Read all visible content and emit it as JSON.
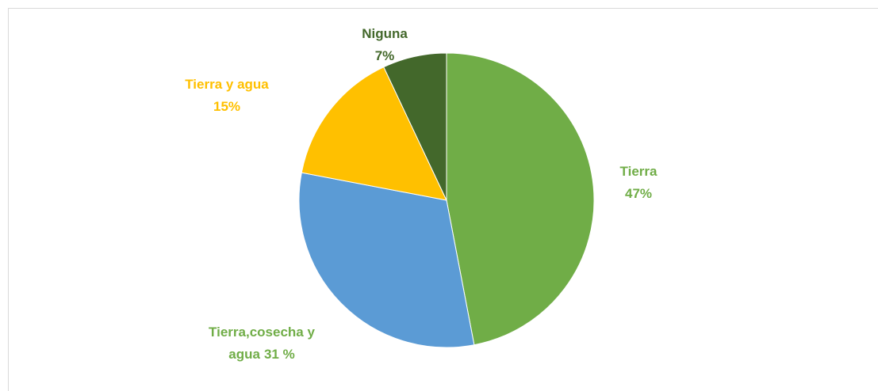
{
  "chart_data": {
    "type": "pie",
    "categories": [
      "Tierra",
      "Tierra,cosecha y agua",
      "Tierra y agua",
      "Niguna"
    ],
    "values": [
      47,
      31,
      15,
      7
    ],
    "value_labels": [
      "47%",
      "31 %",
      "15%",
      "7%"
    ],
    "colors": [
      "#70ad47",
      "#5b9bd5",
      "#ffc000",
      "#43682b"
    ],
    "label_colors": [
      "#70ad47",
      "#70ad47",
      "#ffc000",
      "#43682b"
    ]
  }
}
